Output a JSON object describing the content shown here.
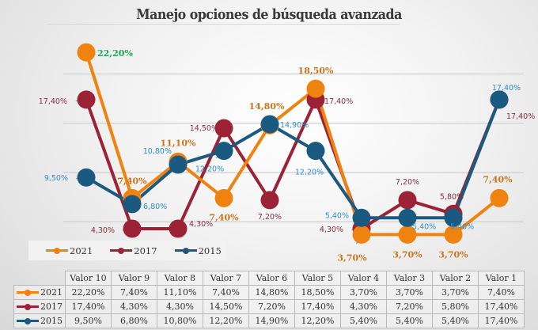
{
  "chart_data": {
    "type": "line",
    "title": "Manejo opciones de búsqueda avanzada",
    "xlabel": "",
    "ylabel": "",
    "ylim": [
      0,
      25
    ],
    "grid": true,
    "legend_position": "bottom-left",
    "categories": [
      "Valor 10",
      "Valor 9",
      "Valor 8",
      "Valor 7",
      "Valor 6",
      "Valor 5",
      "Valor 4",
      "Valor 3",
      "Valor 2",
      "Valor 1"
    ],
    "series": [
      {
        "name": "2021",
        "color": "#f0820f",
        "label_color": "#c8761e",
        "values": [
          22.2,
          7.4,
          11.1,
          7.4,
          14.8,
          18.5,
          3.7,
          3.7,
          3.7,
          7.4
        ],
        "labels": [
          "22,20%",
          "7,40%",
          "11,10%",
          "7,40%",
          "14,80%",
          "18,50%",
          "3,70%",
          "3,70%",
          "3,70%",
          "7,40%"
        ]
      },
      {
        "name": "2017",
        "color": "#9b2335",
        "label_color": "#8a2d3b",
        "values": [
          17.4,
          4.3,
          4.3,
          14.5,
          7.2,
          17.4,
          4.3,
          7.2,
          5.8,
          17.4
        ],
        "labels": [
          "17,40%",
          "4,30%",
          "4,30%",
          "14,50%",
          "7,20%",
          "17,40%",
          "4,30%",
          "7,20%",
          "5,80%",
          "17,40%"
        ]
      },
      {
        "name": "2015",
        "color": "#1b5a80",
        "label_color": "#2e8fd0",
        "values": [
          9.5,
          6.8,
          10.8,
          12.2,
          14.9,
          12.2,
          5.4,
          5.4,
          5.4,
          17.4
        ],
        "labels": [
          "9,50%",
          "6,80%",
          "10,80%",
          "12,20%",
          "14,90%",
          "12,20%",
          "5,40%",
          "5,40%",
          "5,40%",
          "17,40%"
        ]
      }
    ],
    "highlight_label": {
      "series": "2021",
      "category": "Valor 10",
      "color": "#1aaa55"
    }
  }
}
